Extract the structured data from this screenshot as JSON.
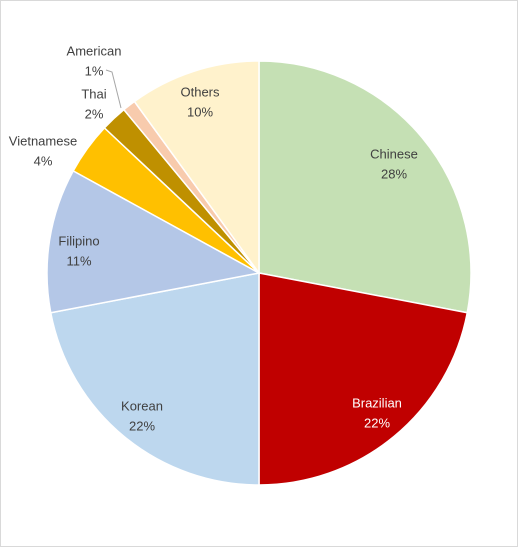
{
  "chart_data": {
    "type": "pie",
    "categories": [
      "Chinese",
      "Brazilian",
      "Korean",
      "Filipino",
      "Vietnamese",
      "Thai",
      "American",
      "Others"
    ],
    "values": [
      28,
      22,
      22,
      11,
      4,
      2,
      1,
      10
    ],
    "value_labels": [
      "28%",
      "22%",
      "22%",
      "11%",
      "4%",
      "2%",
      "1%",
      "10%"
    ],
    "colors": [
      "#c5e0b4",
      "#c00000",
      "#bdd7ee",
      "#b4c7e7",
      "#ffc000",
      "#bf9000",
      "#f8cbad",
      "#fff2cc"
    ]
  }
}
